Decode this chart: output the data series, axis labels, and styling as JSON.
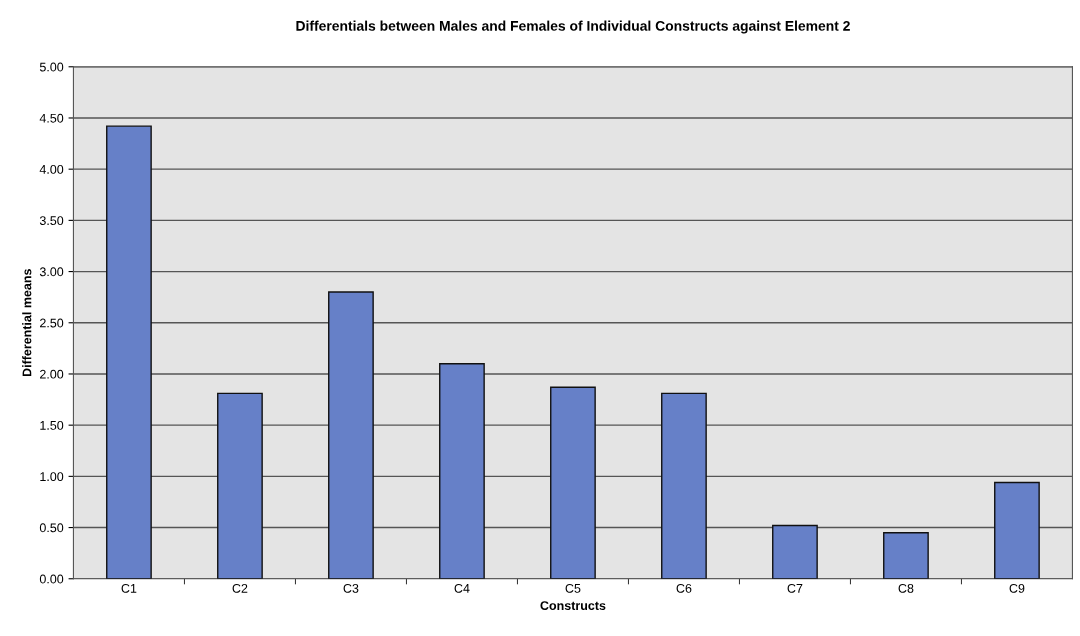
{
  "chart_data": {
    "type": "bar",
    "title": "Differentials between Males and Females of Individual Constructs against Element 2",
    "xlabel": "Constructs",
    "ylabel": "Differential means",
    "categories": [
      "C1",
      "C2",
      "C3",
      "C4",
      "C5",
      "C6",
      "C7",
      "C8",
      "C9"
    ],
    "values": [
      4.42,
      1.81,
      2.8,
      2.1,
      1.87,
      1.81,
      0.52,
      0.45,
      0.94
    ],
    "color": "#6680c8",
    "ylim": [
      0,
      5
    ],
    "yticks": [
      {
        "value": 0,
        "label": "0.00"
      },
      {
        "value": 0.5,
        "label": "0.50"
      },
      {
        "value": 1,
        "label": "1.00"
      },
      {
        "value": 1.5,
        "label": "1.50"
      },
      {
        "value": 2,
        "label": "2.00"
      },
      {
        "value": 2.5,
        "label": "2.50"
      },
      {
        "value": 3,
        "label": "3.00"
      },
      {
        "value": 3.5,
        "label": "3.50"
      },
      {
        "value": 4,
        "label": "4.00"
      },
      {
        "value": 4.5,
        "label": "4.50"
      },
      {
        "value": 5,
        "label": "5.00"
      }
    ],
    "grid": "y"
  }
}
